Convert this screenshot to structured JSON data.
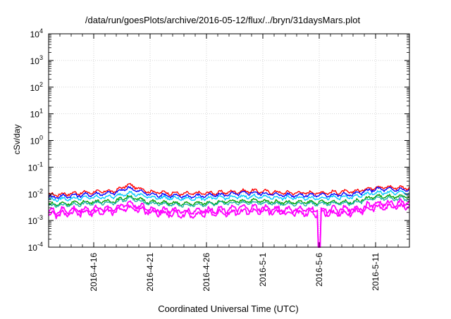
{
  "chart_data": {
    "type": "line",
    "title": "/data/run/goesPlots/archive/2016-05-12/flux/../bryn/31daysMars.plot",
    "xlabel": "Coordinated Universal Time (UTC)",
    "ylabel": "cSv/day",
    "yscale": "log",
    "ylim": [
      0.0001,
      10000
    ],
    "xlim": [
      "2016-04-12",
      "2016-05-14"
    ],
    "x_ticks": [
      "2016-4-16",
      "2016-4-21",
      "2016-4-26",
      "2016-5-1",
      "2016-5-6",
      "2016-5-11"
    ],
    "y_ticks": [
      {
        "base": "10",
        "exp": "4"
      },
      {
        "base": "10",
        "exp": "3"
      },
      {
        "base": "10",
        "exp": "2"
      },
      {
        "base": "10",
        "exp": "1"
      },
      {
        "base": "10",
        "exp": "0"
      },
      {
        "base": "10",
        "exp": "-1"
      },
      {
        "base": "10",
        "exp": "-2"
      },
      {
        "base": "10",
        "exp": "-3"
      },
      {
        "base": "10",
        "exp": "-4"
      }
    ],
    "grid": true,
    "series": [
      {
        "color": "#ff0000",
        "dates": [
          "2016-04-12",
          "2016-04-15",
          "2016-04-18",
          "2016-04-19",
          "2016-04-21",
          "2016-04-24",
          "2016-04-27",
          "2016-04-30",
          "2016-05-03",
          "2016-05-06",
          "2016-05-09",
          "2016-05-11",
          "2016-05-14"
        ],
        "values": [
          0.009,
          0.011,
          0.013,
          0.022,
          0.012,
          0.01,
          0.011,
          0.013,
          0.011,
          0.011,
          0.012,
          0.018,
          0.017
        ]
      },
      {
        "color": "#0000ff",
        "dates": [
          "2016-04-12",
          "2016-04-15",
          "2016-04-18",
          "2016-04-19",
          "2016-04-21",
          "2016-04-24",
          "2016-04-27",
          "2016-04-30",
          "2016-05-03",
          "2016-05-06",
          "2016-05-09",
          "2016-05-11",
          "2016-05-14"
        ],
        "values": [
          0.0075,
          0.009,
          0.011,
          0.017,
          0.0095,
          0.008,
          0.009,
          0.011,
          0.009,
          0.009,
          0.0095,
          0.015,
          0.014
        ]
      },
      {
        "color": "#00c8ff",
        "dates": [
          "2016-04-12",
          "2016-04-15",
          "2016-04-18",
          "2016-04-19",
          "2016-04-21",
          "2016-04-24",
          "2016-04-27",
          "2016-04-30",
          "2016-05-03",
          "2016-05-06",
          "2016-05-09",
          "2016-05-11",
          "2016-05-14"
        ],
        "values": [
          0.006,
          0.007,
          0.008,
          0.011,
          0.0075,
          0.0065,
          0.007,
          0.008,
          0.007,
          0.007,
          0.0075,
          0.011,
          0.011
        ]
      },
      {
        "color": "#00a000",
        "dates": [
          "2016-04-12",
          "2016-04-15",
          "2016-04-18",
          "2016-04-19",
          "2016-04-21",
          "2016-04-24",
          "2016-04-27",
          "2016-04-30",
          "2016-05-03",
          "2016-05-06",
          "2016-05-09",
          "2016-05-11",
          "2016-05-14"
        ],
        "values": [
          0.004,
          0.0048,
          0.0055,
          0.008,
          0.005,
          0.0042,
          0.0048,
          0.0056,
          0.0048,
          0.0048,
          0.005,
          0.008,
          0.0075
        ]
      },
      {
        "color": "#20b2aa",
        "dates": [
          "2016-04-12",
          "2016-04-15",
          "2016-04-18",
          "2016-04-19",
          "2016-04-21",
          "2016-04-24",
          "2016-04-27",
          "2016-04-30",
          "2016-05-03",
          "2016-05-06",
          "2016-05-09",
          "2016-05-11",
          "2016-05-14"
        ],
        "values": [
          0.0035,
          0.0042,
          0.0048,
          0.0068,
          0.0044,
          0.0037,
          0.0042,
          0.0048,
          0.0042,
          0.0042,
          0.0044,
          0.0068,
          0.0065
        ]
      },
      {
        "color": "#ff00ff",
        "dates": [
          "2016-04-12",
          "2016-04-15",
          "2016-04-18",
          "2016-04-19",
          "2016-04-21",
          "2016-04-24",
          "2016-04-27",
          "2016-04-30",
          "2016-05-03",
          "2016-05-06",
          "2016-05-09",
          "2016-05-11",
          "2016-05-14"
        ],
        "values": [
          0.0022,
          0.0026,
          0.003,
          0.0045,
          0.0027,
          0.0022,
          0.0026,
          0.003,
          0.0026,
          0.0025,
          0.0027,
          0.0042,
          0.0048
        ]
      },
      {
        "color": "#ff00ff",
        "dates": [
          "2016-04-12",
          "2016-04-15",
          "2016-04-18",
          "2016-04-19",
          "2016-04-21",
          "2016-04-24",
          "2016-04-27",
          "2016-04-30",
          "2016-05-03",
          "2016-05-06",
          "2016-05-09",
          "2016-05-11",
          "2016-05-14"
        ],
        "values": [
          0.0016,
          0.0019,
          0.0022,
          0.0032,
          0.002,
          0.0016,
          0.0019,
          0.0022,
          0.0019,
          0.0018,
          0.002,
          0.003,
          0.0035
        ]
      }
    ],
    "annotations": [
      {
        "type": "dip",
        "date": "2016-05-06",
        "value": 0.0001,
        "color": "#ff00ff"
      }
    ]
  }
}
